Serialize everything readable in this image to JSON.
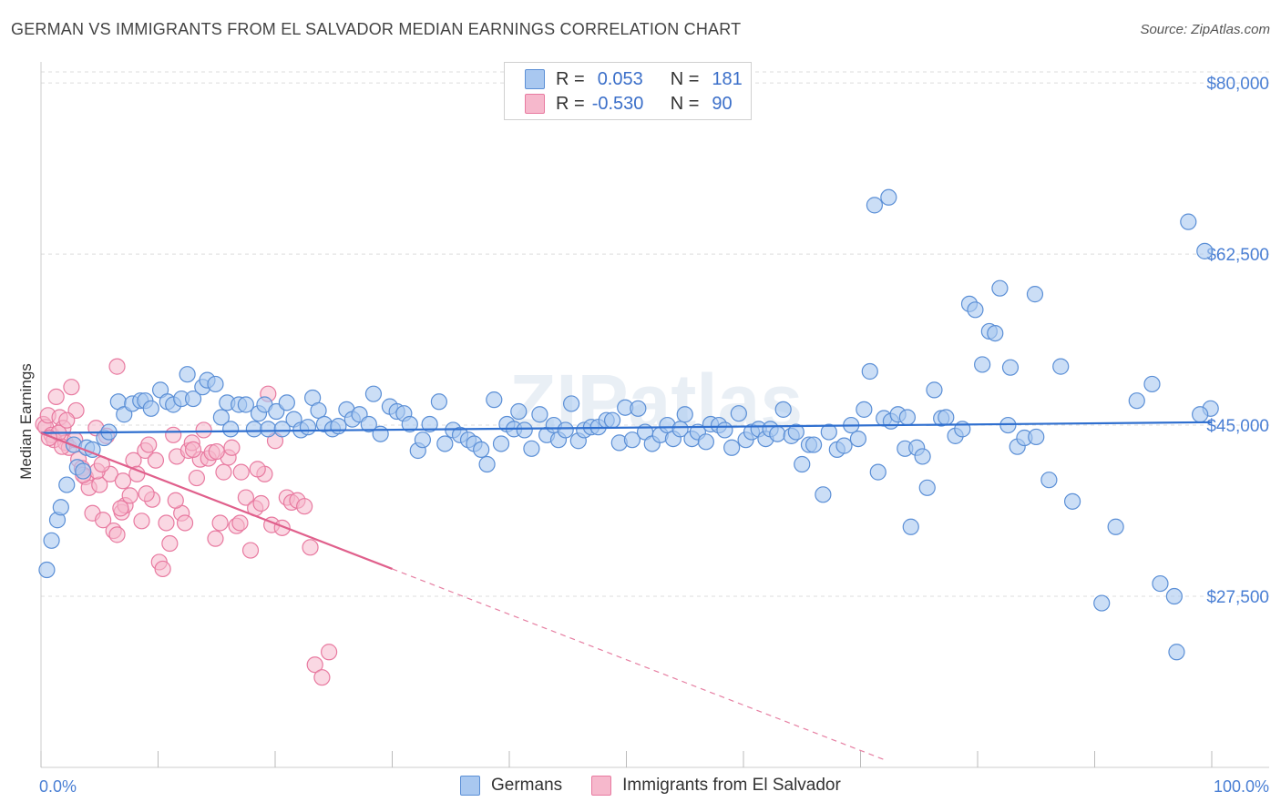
{
  "title": "GERMAN VS IMMIGRANTS FROM EL SALVADOR MEDIAN EARNINGS CORRELATION CHART",
  "source": "Source: ZipAtlas.com",
  "watermark": "ZIPatlas",
  "colors": {
    "german_fill": "#a9c8f0",
    "german_stroke": "#5b8fd6",
    "german_line": "#2f6fcf",
    "salvador_fill": "#f6b8cc",
    "salvador_stroke": "#e87aa0",
    "salvador_line": "#e0608c",
    "axis_text": "#4a7fd4",
    "grid": "#dcdcdc"
  },
  "legend": {
    "rows": [
      {
        "r_label": "R =",
        "r_value": "0.053",
        "n_label": "N =",
        "n_value": "181"
      },
      {
        "r_label": "R =",
        "r_value": "-0.530",
        "n_label": "N =",
        "n_value": "90"
      }
    ]
  },
  "bottom_legend": [
    "Germans",
    "Immigrants from El Salvador"
  ],
  "chart_data": {
    "type": "scatter",
    "title": "GERMAN VS IMMIGRANTS FROM EL SALVADOR MEDIAN EARNINGS CORRELATION CHART",
    "xlabel": "",
    "ylabel": "Median Earnings",
    "xlim": [
      0,
      100
    ],
    "ylim": [
      10000,
      81500
    ],
    "x_tick_labels": [
      "0.0%",
      "100.0%"
    ],
    "y_ticks": [
      27500,
      45000,
      62500,
      80000
    ],
    "y_tick_labels": [
      "$27,500",
      "$45,000",
      "$62,500",
      "$80,000"
    ],
    "grid": true,
    "series": [
      {
        "name": "Germans",
        "r": 0.053,
        "n": 181,
        "trend": {
          "x0": 0,
          "y0": 44200,
          "x1": 100,
          "y1": 45300
        },
        "points": [
          [
            0.5,
            30200
          ],
          [
            0.9,
            33200
          ],
          [
            1.4,
            35300
          ],
          [
            1.7,
            36600
          ],
          [
            2.2,
            38900
          ],
          [
            2.8,
            43000
          ],
          [
            3.1,
            40700
          ],
          [
            3.6,
            40300
          ],
          [
            3.9,
            42700
          ],
          [
            4.4,
            42500
          ],
          [
            5.4,
            43700
          ],
          [
            5.8,
            44300
          ],
          [
            6.6,
            47400
          ],
          [
            7.1,
            46100
          ],
          [
            7.8,
            47200
          ],
          [
            8.5,
            47500
          ],
          [
            8.9,
            47500
          ],
          [
            9.4,
            46700
          ],
          [
            10.2,
            48600
          ],
          [
            10.8,
            47400
          ],
          [
            11.3,
            47100
          ],
          [
            12.0,
            47700
          ],
          [
            12.5,
            50200
          ],
          [
            13.0,
            47700
          ],
          [
            13.8,
            48900
          ],
          [
            14.2,
            49600
          ],
          [
            14.9,
            49200
          ],
          [
            15.4,
            45800
          ],
          [
            15.9,
            47300
          ],
          [
            16.2,
            44600
          ],
          [
            16.9,
            47100
          ],
          [
            17.5,
            47100
          ],
          [
            18.2,
            44600
          ],
          [
            18.6,
            46200
          ],
          [
            19.1,
            47100
          ],
          [
            19.4,
            44600
          ],
          [
            20.1,
            46400
          ],
          [
            20.6,
            44600
          ],
          [
            21.0,
            47300
          ],
          [
            21.6,
            45600
          ],
          [
            22.2,
            44500
          ],
          [
            22.8,
            44800
          ],
          [
            23.2,
            47800
          ],
          [
            23.7,
            46500
          ],
          [
            24.2,
            45100
          ],
          [
            24.9,
            44600
          ],
          [
            25.4,
            44900
          ],
          [
            26.1,
            46600
          ],
          [
            26.6,
            45600
          ],
          [
            27.2,
            46100
          ],
          [
            28.0,
            45100
          ],
          [
            28.4,
            48200
          ],
          [
            29.0,
            44100
          ],
          [
            29.8,
            46900
          ],
          [
            30.4,
            46400
          ],
          [
            31.0,
            46200
          ],
          [
            31.5,
            45100
          ],
          [
            32.2,
            42400
          ],
          [
            32.6,
            43500
          ],
          [
            33.2,
            45100
          ],
          [
            34.0,
            47400
          ],
          [
            34.5,
            43100
          ],
          [
            35.2,
            44500
          ],
          [
            35.8,
            44000
          ],
          [
            36.5,
            43500
          ],
          [
            37.0,
            43100
          ],
          [
            37.6,
            42500
          ],
          [
            38.1,
            41000
          ],
          [
            38.7,
            47600
          ],
          [
            39.3,
            43100
          ],
          [
            39.8,
            45100
          ],
          [
            40.4,
            44600
          ],
          [
            40.8,
            46400
          ],
          [
            41.3,
            44500
          ],
          [
            41.9,
            42600
          ],
          [
            42.6,
            46100
          ],
          [
            43.2,
            44000
          ],
          [
            43.8,
            45000
          ],
          [
            44.2,
            43500
          ],
          [
            44.8,
            44500
          ],
          [
            45.3,
            47200
          ],
          [
            45.9,
            43400
          ],
          [
            46.4,
            44500
          ],
          [
            47.0,
            44800
          ],
          [
            47.6,
            44800
          ],
          [
            48.3,
            45500
          ],
          [
            48.8,
            45500
          ],
          [
            49.4,
            43200
          ],
          [
            49.9,
            46800
          ],
          [
            50.5,
            43500
          ],
          [
            51.0,
            46700
          ],
          [
            51.6,
            44300
          ],
          [
            52.2,
            43100
          ],
          [
            52.9,
            44000
          ],
          [
            53.5,
            45000
          ],
          [
            54.0,
            43600
          ],
          [
            54.6,
            44600
          ],
          [
            55.0,
            46100
          ],
          [
            55.6,
            43600
          ],
          [
            56.1,
            44300
          ],
          [
            56.8,
            43300
          ],
          [
            57.2,
            45100
          ],
          [
            57.9,
            45000
          ],
          [
            58.4,
            44500
          ],
          [
            59.0,
            42700
          ],
          [
            59.6,
            46200
          ],
          [
            60.2,
            43500
          ],
          [
            60.7,
            44300
          ],
          [
            61.3,
            44600
          ],
          [
            61.9,
            43600
          ],
          [
            62.3,
            44600
          ],
          [
            62.9,
            44100
          ],
          [
            63.4,
            46600
          ],
          [
            64.1,
            43900
          ],
          [
            64.5,
            44300
          ],
          [
            65.0,
            41000
          ],
          [
            65.6,
            43000
          ],
          [
            66.0,
            43000
          ],
          [
            66.8,
            37900
          ],
          [
            67.3,
            44300
          ],
          [
            68.0,
            42500
          ],
          [
            68.6,
            42900
          ],
          [
            69.2,
            45000
          ],
          [
            69.8,
            43600
          ],
          [
            70.3,
            46600
          ],
          [
            70.8,
            50500
          ],
          [
            71.5,
            40200
          ],
          [
            72.0,
            45700
          ],
          [
            72.6,
            45400
          ],
          [
            73.2,
            46100
          ],
          [
            73.8,
            42600
          ],
          [
            74.3,
            34600
          ],
          [
            74.8,
            42700
          ],
          [
            75.3,
            41800
          ],
          [
            75.7,
            38600
          ],
          [
            76.3,
            48600
          ],
          [
            76.9,
            45700
          ],
          [
            77.3,
            45800
          ],
          [
            78.1,
            43900
          ],
          [
            78.7,
            44600
          ],
          [
            79.3,
            57400
          ],
          [
            79.8,
            56800
          ],
          [
            80.4,
            51200
          ],
          [
            81.0,
            54600
          ],
          [
            81.5,
            54400
          ],
          [
            81.9,
            59000
          ],
          [
            82.6,
            45000
          ],
          [
            82.8,
            50900
          ],
          [
            83.4,
            42800
          ],
          [
            84.0,
            43700
          ],
          [
            84.9,
            58400
          ],
          [
            86.1,
            39400
          ],
          [
            87.1,
            51000
          ],
          [
            88.1,
            37200
          ],
          [
            90.6,
            26800
          ],
          [
            91.8,
            34600
          ],
          [
            93.6,
            47500
          ],
          [
            94.9,
            49200
          ],
          [
            95.6,
            28800
          ],
          [
            96.8,
            27500
          ],
          [
            97.0,
            21800
          ],
          [
            98.0,
            65800
          ],
          [
            99.4,
            62800
          ],
          [
            99.9,
            46700
          ],
          [
            71.2,
            67500
          ],
          [
            72.4,
            68300
          ],
          [
            99.0,
            46100
          ],
          [
            85.0,
            43800
          ],
          [
            74.0,
            45800
          ]
        ]
      },
      {
        "name": "Immigrants from El Salvador",
        "r": -0.53,
        "n": 90,
        "trend": {
          "x0": 0,
          "y0": 44200,
          "x1": 30,
          "y1": 30300
        },
        "trend_dashed": {
          "x0": 30,
          "y0": 30300,
          "x1": 72,
          "y1": 10800
        },
        "points": [
          [
            0.2,
            45100
          ],
          [
            0.4,
            44800
          ],
          [
            0.6,
            46000
          ],
          [
            0.9,
            44000
          ],
          [
            1.1,
            43500
          ],
          [
            1.3,
            47900
          ],
          [
            1.6,
            45800
          ],
          [
            1.9,
            44700
          ],
          [
            2.1,
            43200
          ],
          [
            2.4,
            42700
          ],
          [
            2.6,
            48900
          ],
          [
            2.9,
            43500
          ],
          [
            3.2,
            41500
          ],
          [
            3.5,
            40600
          ],
          [
            3.8,
            39700
          ],
          [
            4.1,
            38600
          ],
          [
            4.4,
            36000
          ],
          [
            4.7,
            44700
          ],
          [
            5.0,
            38900
          ],
          [
            5.3,
            35300
          ],
          [
            5.6,
            43900
          ],
          [
            5.9,
            40000
          ],
          [
            6.2,
            34200
          ],
          [
            6.5,
            33800
          ],
          [
            6.5,
            51000
          ],
          [
            6.9,
            36100
          ],
          [
            7.2,
            36800
          ],
          [
            7.6,
            37800
          ],
          [
            7.9,
            41400
          ],
          [
            8.2,
            40000
          ],
          [
            8.6,
            35200
          ],
          [
            8.9,
            42400
          ],
          [
            9.2,
            43000
          ],
          [
            9.5,
            37400
          ],
          [
            9.8,
            41400
          ],
          [
            10.1,
            31000
          ],
          [
            10.4,
            30300
          ],
          [
            10.7,
            35000
          ],
          [
            11.0,
            32900
          ],
          [
            11.3,
            44000
          ],
          [
            11.6,
            41800
          ],
          [
            12.0,
            36000
          ],
          [
            12.3,
            35000
          ],
          [
            12.6,
            42400
          ],
          [
            12.9,
            43200
          ],
          [
            13.3,
            39600
          ],
          [
            13.6,
            41500
          ],
          [
            13.9,
            44500
          ],
          [
            14.3,
            41600
          ],
          [
            14.6,
            42200
          ],
          [
            14.9,
            33400
          ],
          [
            15.3,
            35000
          ],
          [
            15.6,
            40200
          ],
          [
            16.0,
            41700
          ],
          [
            16.3,
            42700
          ],
          [
            16.7,
            34700
          ],
          [
            17.1,
            40200
          ],
          [
            17.5,
            37600
          ],
          [
            17.9,
            32200
          ],
          [
            18.3,
            36500
          ],
          [
            18.8,
            37000
          ],
          [
            19.1,
            40000
          ],
          [
            19.4,
            48200
          ],
          [
            19.7,
            34800
          ],
          [
            20.0,
            43400
          ],
          [
            20.6,
            34500
          ],
          [
            21.0,
            37600
          ],
          [
            21.4,
            37100
          ],
          [
            21.9,
            37300
          ],
          [
            22.5,
            36700
          ],
          [
            23.0,
            32500
          ],
          [
            23.4,
            20500
          ],
          [
            24.0,
            19200
          ],
          [
            24.6,
            21800
          ],
          [
            3.0,
            46500
          ],
          [
            4.8,
            40300
          ],
          [
            7.0,
            39300
          ],
          [
            9.0,
            38000
          ],
          [
            11.5,
            37300
          ],
          [
            13.0,
            42500
          ],
          [
            15.0,
            42300
          ],
          [
            17.0,
            35000
          ],
          [
            18.5,
            40500
          ],
          [
            1.5,
            44200
          ],
          [
            2.2,
            45500
          ],
          [
            0.7,
            43700
          ],
          [
            1.8,
            42800
          ],
          [
            3.6,
            39900
          ],
          [
            5.2,
            41000
          ],
          [
            6.8,
            36500
          ]
        ]
      }
    ]
  }
}
